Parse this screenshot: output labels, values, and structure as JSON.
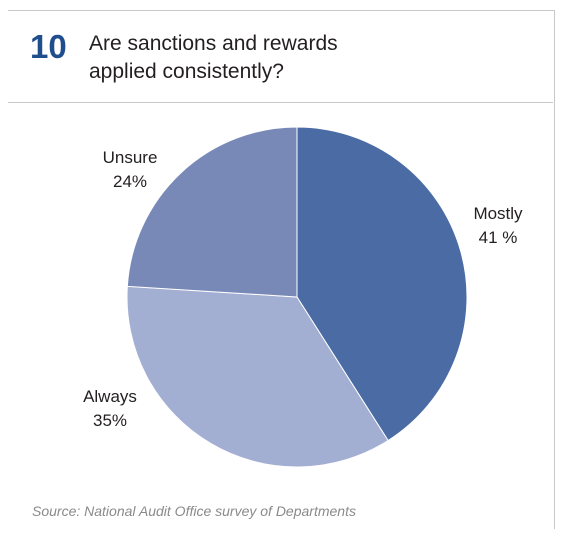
{
  "figure": {
    "number": "10",
    "title_line1": "Are sanctions and rewards",
    "title_line2": "applied consistently?",
    "source": "Source: National Audit Office survey of Departments"
  },
  "chart_data": {
    "type": "pie",
    "title": "Are sanctions and rewards applied consistently?",
    "slices": [
      {
        "label": "Mostly",
        "value": 41,
        "display": "41 %",
        "color": "#4a6ba4"
      },
      {
        "label": "Always",
        "value": 35,
        "display": "35%",
        "color": "#a3afd2"
      },
      {
        "label": "Unsure",
        "value": 24,
        "display": "24%",
        "color": "#7889b8"
      }
    ]
  }
}
